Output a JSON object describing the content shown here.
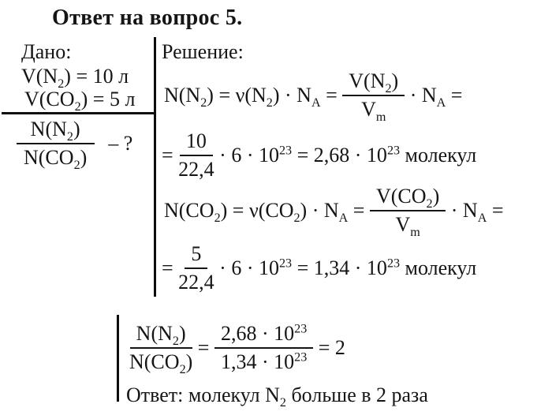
{
  "title": "Ответ на вопрос 5.",
  "given": {
    "label": "Дано:",
    "lines": [
      [
        {
          "t": "V(N"
        },
        {
          "t": "2",
          "v": "sub"
        },
        {
          "t": ") = 10 л"
        }
      ],
      [
        {
          "t": "V(CO"
        },
        {
          "t": "2",
          "v": "sub"
        },
        {
          "t": ") = 5 л"
        }
      ]
    ],
    "find": {
      "num": [
        {
          "t": "N(N"
        },
        {
          "t": "2",
          "v": "sub"
        },
        {
          "t": ")"
        }
      ],
      "den": [
        {
          "t": "N(CO"
        },
        {
          "t": "2",
          "v": "sub"
        },
        {
          "t": ")"
        }
      ],
      "question": "– ?"
    }
  },
  "solution": {
    "label": "Решение:",
    "eq1": {
      "pre": [
        {
          "t": "N(N"
        },
        {
          "t": "2",
          "v": "sub"
        },
        {
          "t": ") = ν(N"
        },
        {
          "t": "2",
          "v": "sub"
        },
        {
          "t": ") · N"
        },
        {
          "t": "A",
          "v": "sub"
        },
        {
          "t": " = "
        }
      ],
      "frac": {
        "num": [
          {
            "t": "V(N"
          },
          {
            "t": "2",
            "v": "sub"
          },
          {
            "t": ")"
          }
        ],
        "den": [
          {
            "t": "V"
          },
          {
            "t": "m",
            "v": "sub"
          }
        ]
      },
      "post": [
        {
          "t": " · N"
        },
        {
          "t": "A",
          "v": "sub"
        },
        {
          "t": " ="
        }
      ]
    },
    "eq2": {
      "pre": [
        {
          "t": "= "
        }
      ],
      "frac": {
        "num": [
          {
            "t": "10"
          }
        ],
        "den": [
          {
            "t": "22,4"
          }
        ]
      },
      "post": [
        {
          "t": " · 6 · 10"
        },
        {
          "t": "23",
          "v": "sup"
        },
        {
          "t": " = 2,68 · 10"
        },
        {
          "t": "23",
          "v": "sup"
        },
        {
          "t": " молекул"
        }
      ]
    },
    "eq3": {
      "pre": [
        {
          "t": "N(CO"
        },
        {
          "t": "2",
          "v": "sub"
        },
        {
          "t": ") = ν(CO"
        },
        {
          "t": "2",
          "v": "sub"
        },
        {
          "t": ") · N"
        },
        {
          "t": "A",
          "v": "sub"
        },
        {
          "t": " = "
        }
      ],
      "frac": {
        "num": [
          {
            "t": "V(CO"
          },
          {
            "t": "2",
            "v": "sub"
          },
          {
            "t": ")"
          }
        ],
        "den": [
          {
            "t": "V"
          },
          {
            "t": "m",
            "v": "sub"
          }
        ]
      },
      "post": [
        {
          "t": " · N"
        },
        {
          "t": "A",
          "v": "sub"
        },
        {
          "t": " ="
        }
      ]
    },
    "eq4": {
      "pre": [
        {
          "t": "= "
        }
      ],
      "frac": {
        "num": [
          {
            "t": "5"
          }
        ],
        "den": [
          {
            "t": "22,4"
          }
        ]
      },
      "post": [
        {
          "t": " · 6 · 10"
        },
        {
          "t": "23",
          "v": "sup"
        },
        {
          "t": " = 1,34 · 10"
        },
        {
          "t": "23",
          "v": "sup"
        },
        {
          "t": " молекул"
        }
      ]
    }
  },
  "result": {
    "frac_left": {
      "num": [
        {
          "t": "N(N"
        },
        {
          "t": "2",
          "v": "sub"
        },
        {
          "t": ")"
        }
      ],
      "den": [
        {
          "t": "N(CO"
        },
        {
          "t": "2",
          "v": "sub"
        },
        {
          "t": ")"
        }
      ]
    },
    "equals": " = ",
    "frac_right": {
      "num": [
        {
          "t": "2,68 · 10"
        },
        {
          "t": "23",
          "v": "sup"
        }
      ],
      "den": [
        {
          "t": "1,34 · 10"
        },
        {
          "t": "23",
          "v": "sup"
        }
      ]
    },
    "value": " = 2",
    "answer": [
      {
        "t": "Ответ: молекул N"
      },
      {
        "t": "2",
        "v": "sub"
      },
      {
        "t": " больше в 2 раза"
      }
    ]
  }
}
